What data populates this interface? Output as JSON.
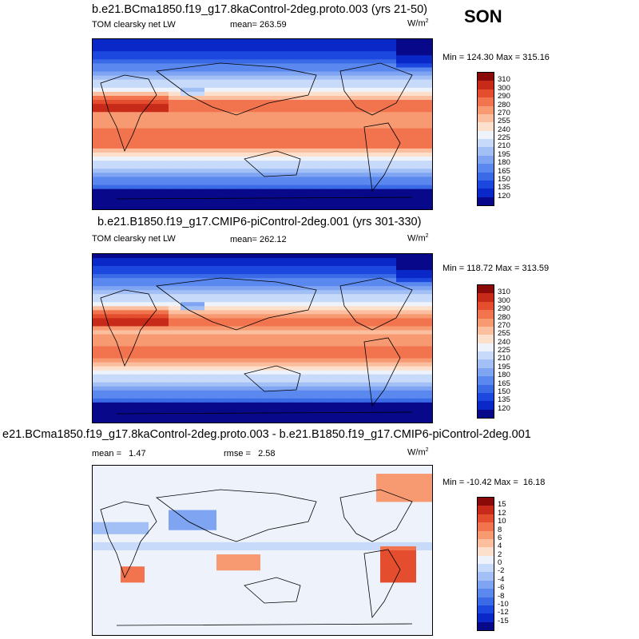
{
  "season": "SON",
  "panels": [
    {
      "title": "b.e21.BCma1850.f19_g17.8kaControl-2deg.proto.003 (yrs 21-50)",
      "left_label": "TOM clearsky net LW",
      "mid_label": "mean= 263.59",
      "units": "W/m",
      "units_sup": "2",
      "minmax": "Min = 124.30 Max = 315.16"
    },
    {
      "title": "b.e21.B1850.f19_g17.CMIP6-piControl-2deg.001 (yrs 301-330)",
      "left_label": "TOM clearsky net LW",
      "mid_label": "mean= 262.12",
      "units": "W/m",
      "units_sup": "2",
      "minmax": "Min = 118.72 Max = 313.59"
    },
    {
      "title": "e21.BCma1850.f19_g17.8kaControl-2deg.proto.003 - b.e21.B1850.f19_g17.CMIP6-piControl-2deg.001",
      "left_label": "mean =   1.47",
      "mid_label": "rmse =   2.58",
      "units": "W/m",
      "units_sup": "2",
      "minmax": "Min = -10.42 Max =  16.18"
    }
  ],
  "chart_data": [
    {
      "type": "heatmap",
      "title": "b.e21.BCma1850.f19_g17.8kaControl-2deg.proto.003 (yrs 21-50)",
      "variable": "TOM clearsky net LW",
      "season": "SON",
      "mean": 263.59,
      "min": 124.3,
      "max": 315.16,
      "units": "W/m2",
      "colorbar_levels": [
        120,
        135,
        150,
        165,
        180,
        195,
        210,
        225,
        240,
        255,
        270,
        280,
        290,
        300,
        310
      ],
      "colorbar_colors": [
        "#08088a",
        "#0a28c8",
        "#1c48e0",
        "#3a6ae6",
        "#5a88ee",
        "#7ea4f2",
        "#a2c0f6",
        "#c8daf9",
        "#eef3fb",
        "#fde0cc",
        "#fbbf9f",
        "#f79a72",
        "#f2744e",
        "#e44e2e",
        "#c72a18",
        "#8a0a0a"
      ]
    },
    {
      "type": "heatmap",
      "title": "b.e21.B1850.f19_g17.CMIP6-piControl-2deg.001 (yrs 301-330)",
      "variable": "TOM clearsky net LW",
      "season": "SON",
      "mean": 262.12,
      "min": 118.72,
      "max": 313.59,
      "units": "W/m2",
      "colorbar_levels": [
        120,
        135,
        150,
        165,
        180,
        195,
        210,
        225,
        240,
        255,
        270,
        280,
        290,
        300,
        310
      ],
      "colorbar_colors": [
        "#08088a",
        "#0a28c8",
        "#1c48e0",
        "#3a6ae6",
        "#5a88ee",
        "#7ea4f2",
        "#a2c0f6",
        "#c8daf9",
        "#eef3fb",
        "#fde0cc",
        "#fbbf9f",
        "#f79a72",
        "#f2744e",
        "#e44e2e",
        "#c72a18",
        "#8a0a0a"
      ]
    },
    {
      "type": "heatmap",
      "title": "e21.BCma1850.f19_g17.8kaControl-2deg.proto.003 - b.e21.B1850.f19_g17.CMIP6-piControl-2deg.001",
      "season": "SON",
      "mean": 1.47,
      "rmse": 2.58,
      "min": -10.42,
      "max": 16.18,
      "units": "W/m2",
      "colorbar_levels": [
        -15,
        -12,
        -10,
        -8,
        -6,
        -4,
        -2,
        0,
        2,
        4,
        6,
        8,
        10,
        12,
        15
      ],
      "colorbar_colors": [
        "#08088a",
        "#0a28c8",
        "#1c48e0",
        "#3a6ae6",
        "#5a88ee",
        "#7ea4f2",
        "#a2c0f6",
        "#c8daf9",
        "#eef3fb",
        "#fde0cc",
        "#fbbf9f",
        "#f79a72",
        "#f2744e",
        "#e44e2e",
        "#c72a18",
        "#8a0a0a"
      ]
    }
  ]
}
